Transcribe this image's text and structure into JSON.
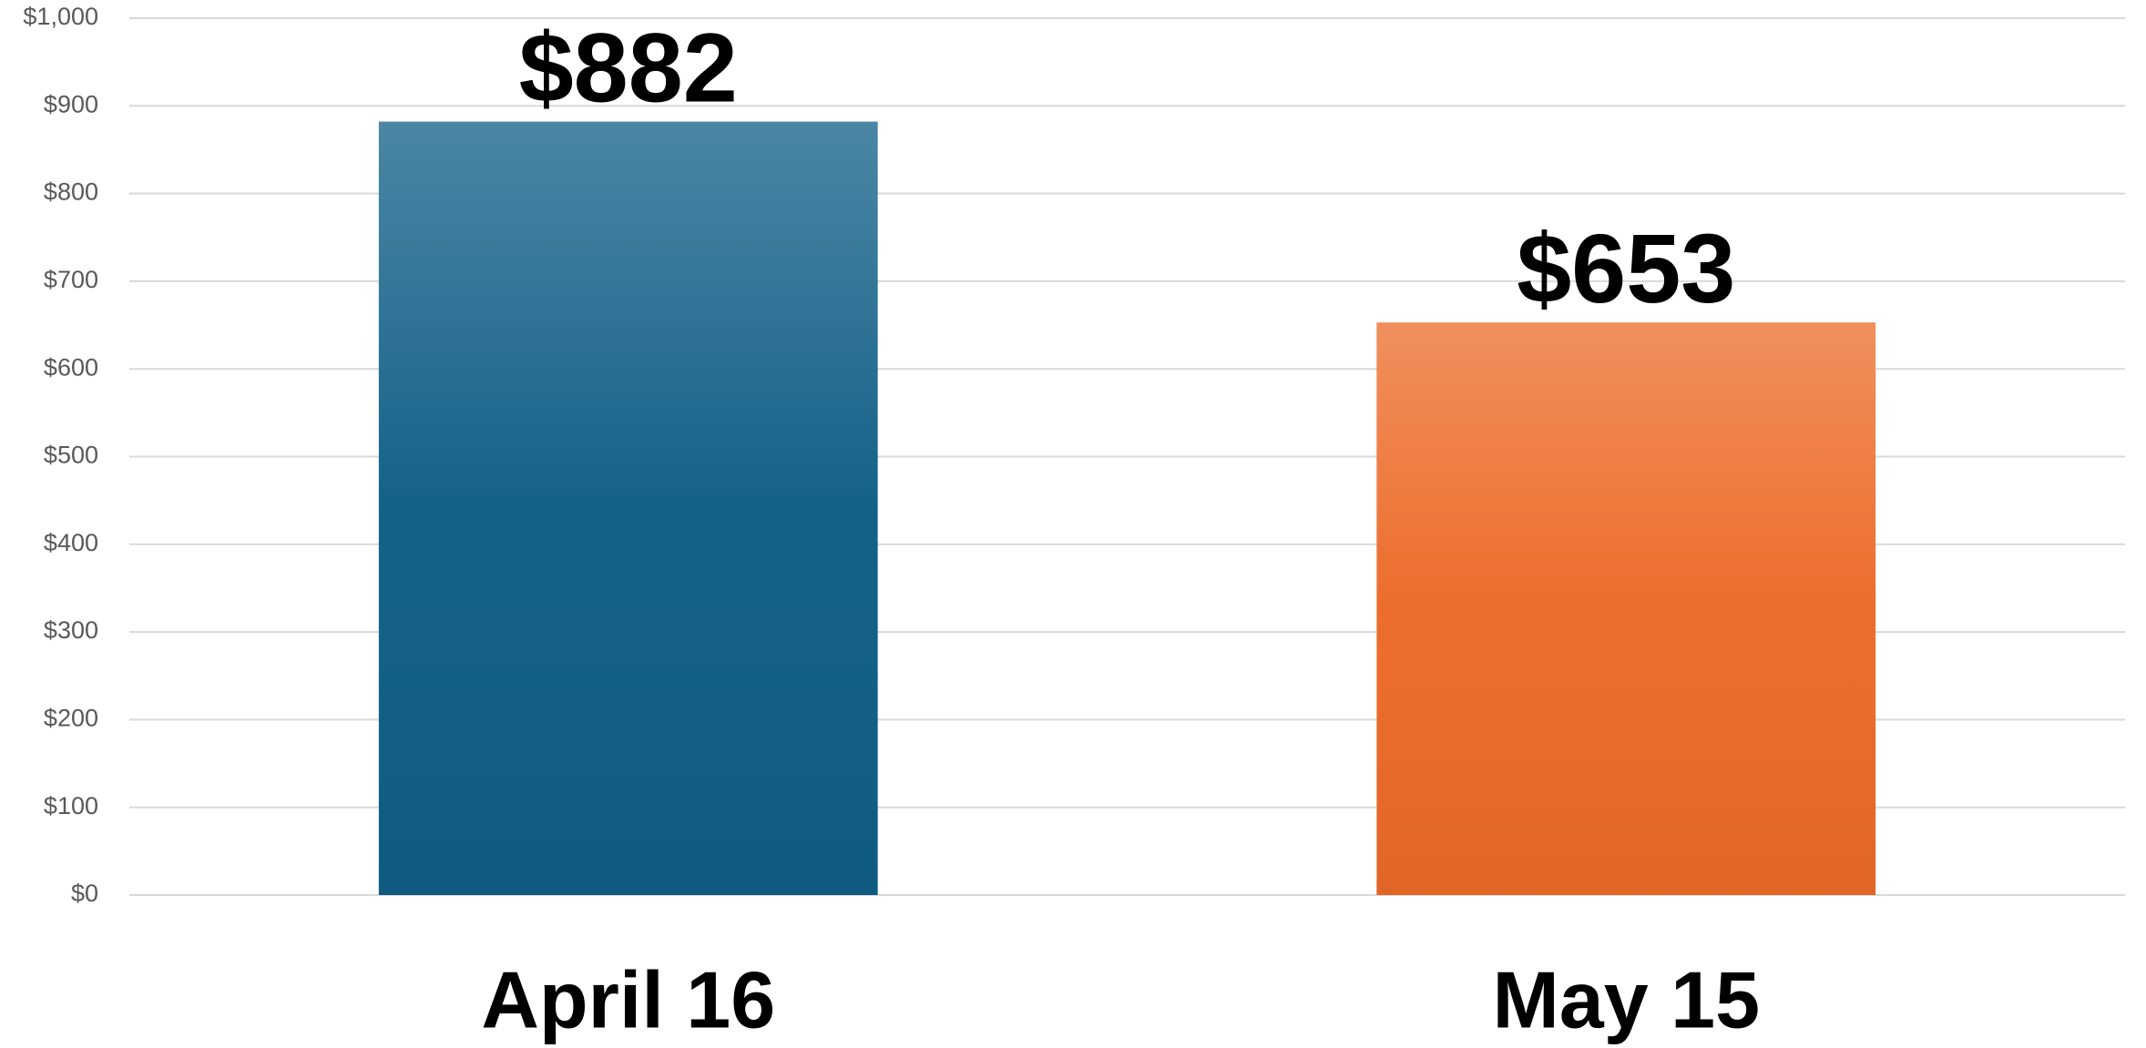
{
  "chart_data": {
    "type": "bar",
    "categories": [
      "April 16",
      "May 15"
    ],
    "values": [
      882,
      653
    ],
    "value_labels": [
      "$882",
      "$653"
    ],
    "colors": [
      "#0f5e86",
      "#ec6a27"
    ],
    "ylim": [
      0,
      1000
    ],
    "yticks": [
      {
        "value": 0,
        "label": "$0"
      },
      {
        "value": 100,
        "label": "$100"
      },
      {
        "value": 200,
        "label": "$200"
      },
      {
        "value": 300,
        "label": "$300"
      },
      {
        "value": 400,
        "label": "$400"
      },
      {
        "value": 500,
        "label": "$500"
      },
      {
        "value": 600,
        "label": "$600"
      },
      {
        "value": 700,
        "label": "$700"
      },
      {
        "value": 800,
        "label": "$800"
      },
      {
        "value": 900,
        "label": "$900"
      },
      {
        "value": 1000,
        "label": "$1,000"
      }
    ],
    "grid": true
  }
}
